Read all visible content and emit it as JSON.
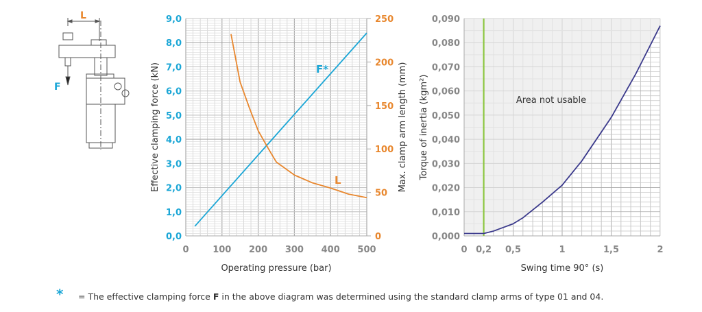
{
  "colors": {
    "force": "#1aa6d6",
    "length": "#e8872e",
    "torque": "#3b3a8c",
    "limit": "#8cc63f",
    "axis_gray": "#888888"
  },
  "drawing": {
    "label_L": "L",
    "label_F": "F"
  },
  "chart_data": [
    {
      "type": "line",
      "title": "",
      "xlabel": "Operating pressure (bar)",
      "ylabel": "Effective clamping force (kN)",
      "y2label": "Max. clamp arm length (mm)",
      "xlim": [
        0,
        500
      ],
      "ylim": [
        0,
        9
      ],
      "y2lim": [
        0,
        250
      ],
      "grid": true,
      "x_ticks": [
        "0",
        "100",
        "200",
        "300",
        "400",
        "500"
      ],
      "y_ticks": [
        "0,0",
        "1,0",
        "2,0",
        "3,0",
        "4,0",
        "5,0",
        "6,0",
        "7,0",
        "8,0",
        "9,0"
      ],
      "y2_ticks": [
        "0",
        "50",
        "100",
        "150",
        "200",
        "250"
      ],
      "series": [
        {
          "name": "F*",
          "axis": "left",
          "x": [
            25,
            500
          ],
          "y": [
            0.4,
            8.4
          ]
        },
        {
          "name": "L",
          "axis": "right",
          "x": [
            125,
            150,
            175,
            200,
            230,
            250,
            300,
            350,
            400,
            450,
            500
          ],
          "y": [
            232,
            177,
            148,
            121,
            99,
            85,
            70,
            61,
            55,
            48,
            44
          ]
        }
      ]
    },
    {
      "type": "line",
      "title": "",
      "xlabel": "Swing time 90° (s)",
      "ylabel": "Torque of inertia (kgm²)",
      "xlim": [
        0,
        2
      ],
      "ylim": [
        0,
        0.09
      ],
      "grid": true,
      "x_ticks": [
        {
          "v": 0,
          "t": "0"
        },
        {
          "v": 0.2,
          "t": "0,2"
        },
        {
          "v": 0.5,
          "t": "0,5"
        },
        {
          "v": 1,
          "t": "1"
        },
        {
          "v": 1.5,
          "t": "1,5"
        },
        {
          "v": 2,
          "t": "2"
        }
      ],
      "y_ticks": [
        "0,000",
        "0,010",
        "0,020",
        "0,030",
        "0,040",
        "0,050",
        "0,060",
        "0,070",
        "0,080",
        "0,090"
      ],
      "limit_line_x": 0.2,
      "annotation": "Area not usable",
      "series": [
        {
          "name": "Torque of inertia",
          "x": [
            0,
            0.2,
            0.3,
            0.4,
            0.5,
            0.6,
            0.8,
            1.0,
            1.2,
            1.5,
            1.75,
            2.0
          ],
          "y": [
            0.001,
            0.001,
            0.002,
            0.0035,
            0.005,
            0.0075,
            0.014,
            0.021,
            0.031,
            0.049,
            0.067,
            0.087
          ]
        }
      ]
    }
  ],
  "footer": {
    "star": "*",
    "text_before": "= The effective clamping force ",
    "bold": "F",
    "text_after": " in the above diagram was determined using the standard clamp arms of type 01 and 04."
  }
}
